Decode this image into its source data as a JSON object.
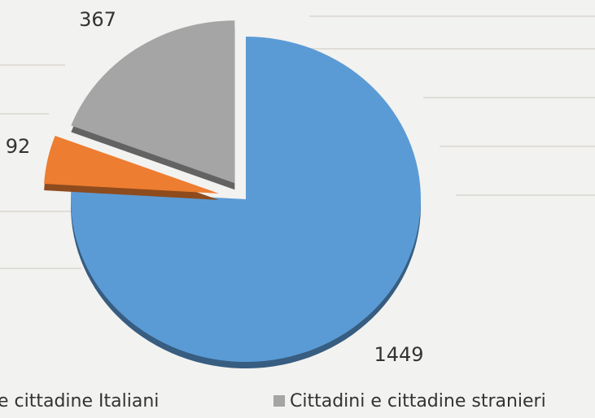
{
  "chart_data": {
    "type": "pie",
    "categories": [
      "e cittadine Italiani",
      null,
      "Cittadini e cittadine stranieri"
    ],
    "values": [
      1449,
      92,
      367
    ],
    "colors": [
      "#5b9bd5",
      "#ed7d31",
      "#a5a5a5"
    ],
    "legend": "bottom"
  }
}
